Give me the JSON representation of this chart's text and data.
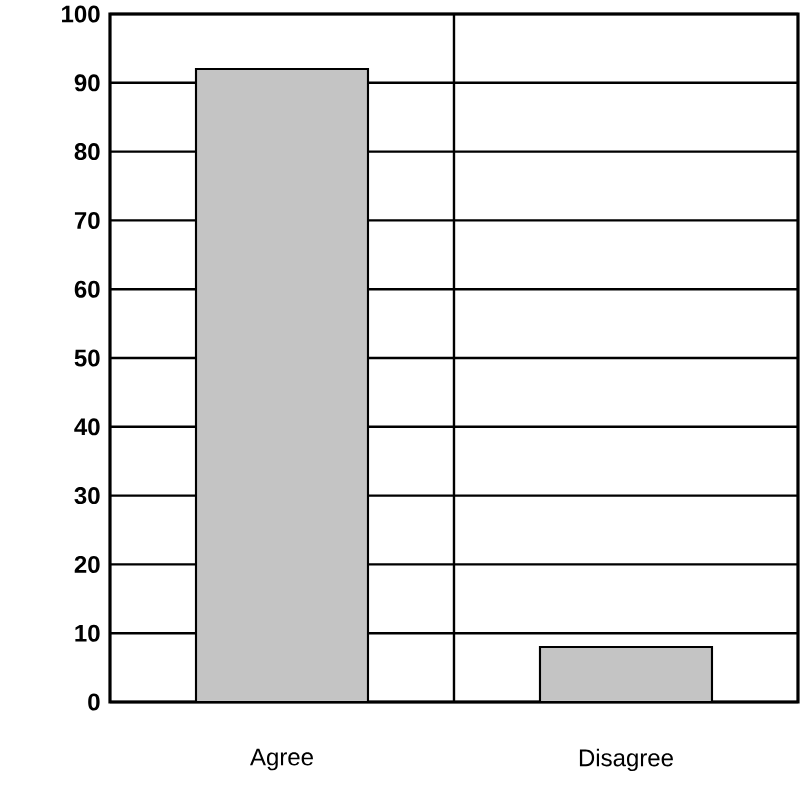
{
  "chart_data": {
    "type": "bar",
    "categories": [
      "Agree",
      "Disagree"
    ],
    "values": [
      92,
      8
    ],
    "color": "#c4c4c4",
    "ylim": [
      0,
      100
    ],
    "yticks": [
      0,
      10,
      20,
      30,
      40,
      50,
      60,
      70,
      80,
      90,
      100
    ],
    "grid": "y"
  }
}
